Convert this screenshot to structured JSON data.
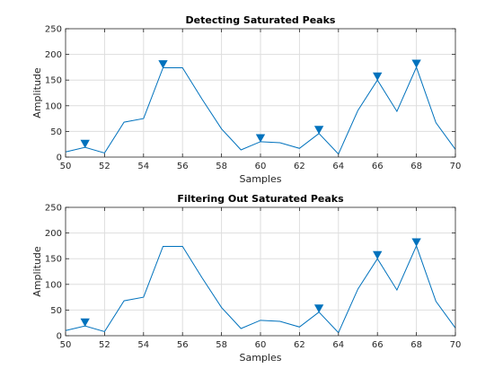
{
  "colors": {
    "line": "#0072BD",
    "marker": "#0072BD",
    "grid": "#dedede",
    "axis": "#262626"
  },
  "chart_data": [
    {
      "type": "line",
      "title": "Detecting Saturated Peaks",
      "xlabel": "Samples",
      "ylabel": "Amplitude",
      "xlim": [
        50,
        70
      ],
      "ylim": [
        0,
        250
      ],
      "xticks": [
        50,
        52,
        54,
        56,
        58,
        60,
        62,
        64,
        66,
        68,
        70
      ],
      "yticks": [
        0,
        50,
        100,
        150,
        200,
        250
      ],
      "grid": true,
      "x": [
        50,
        51,
        52,
        53,
        54,
        55,
        56,
        57,
        58,
        59,
        60,
        61,
        62,
        63,
        64,
        65,
        66,
        67,
        68,
        69,
        70
      ],
      "y": [
        10,
        19,
        8,
        68,
        75,
        174,
        174,
        113,
        55,
        14,
        30,
        28,
        17,
        46,
        6,
        91,
        150,
        89,
        175,
        67,
        15
      ],
      "markers": {
        "symbol": "down-triangle",
        "x": [
          51,
          55,
          60,
          63,
          66,
          68
        ],
        "y": [
          19,
          174,
          30,
          46,
          150,
          175
        ]
      }
    },
    {
      "type": "line",
      "title": "Filtering Out Saturated Peaks",
      "xlabel": "Samples",
      "ylabel": "Amplitude",
      "xlim": [
        50,
        70
      ],
      "ylim": [
        0,
        250
      ],
      "xticks": [
        50,
        52,
        54,
        56,
        58,
        60,
        62,
        64,
        66,
        68,
        70
      ],
      "yticks": [
        0,
        50,
        100,
        150,
        200,
        250
      ],
      "grid": true,
      "x": [
        50,
        51,
        52,
        53,
        54,
        55,
        56,
        57,
        58,
        59,
        60,
        61,
        62,
        63,
        64,
        65,
        66,
        67,
        68,
        69,
        70
      ],
      "y": [
        10,
        19,
        8,
        68,
        75,
        174,
        174,
        113,
        55,
        14,
        30,
        28,
        17,
        46,
        6,
        91,
        150,
        89,
        175,
        67,
        15
      ],
      "markers": {
        "symbol": "down-triangle",
        "x": [
          51,
          63,
          66,
          68
        ],
        "y": [
          19,
          46,
          150,
          175
        ]
      }
    }
  ]
}
